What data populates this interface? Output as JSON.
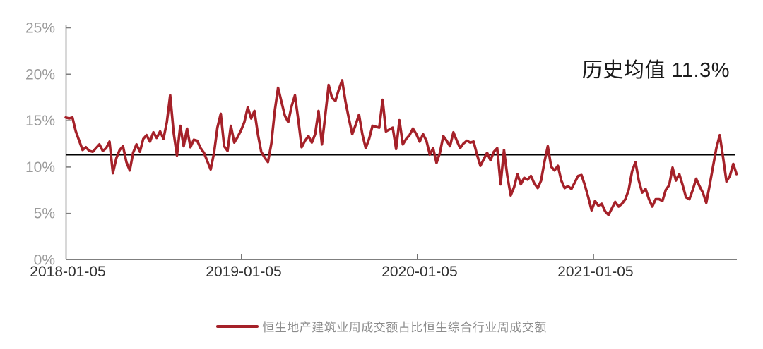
{
  "chart_data": {
    "type": "line",
    "title": "",
    "xlabel": "",
    "ylabel": "",
    "ylim": [
      0,
      25
    ],
    "grid": false,
    "legend_position": "bottom-center",
    "x_ticks": [
      "2018-01-05",
      "2019-01-05",
      "2020-01-05",
      "2021-01-05"
    ],
    "y_ticks": [
      0,
      5,
      10,
      15,
      20,
      25
    ],
    "y_tick_labels": [
      "0%",
      "5%",
      "10%",
      "15%",
      "20%",
      "25%"
    ],
    "mean_line": {
      "value": 11.3,
      "color": "#000000",
      "label": "历史均值 11.3%"
    },
    "series": [
      {
        "name": "恒生地产建筑业周成交额占比恒生综合行业周成交额",
        "color": "#A52129",
        "unit": "%",
        "start_date": "2018-01-05",
        "frequency": "weekly",
        "values": [
          15.3,
          15.2,
          15.3,
          13.8,
          12.8,
          11.8,
          12.1,
          11.7,
          11.6,
          12.0,
          12.4,
          11.7,
          12.0,
          12.7,
          9.3,
          10.9,
          11.8,
          12.2,
          10.5,
          9.6,
          11.5,
          12.4,
          11.6,
          13.0,
          13.4,
          12.7,
          13.7,
          13.1,
          13.8,
          13.0,
          14.8,
          17.7,
          13.7,
          11.2,
          14.4,
          12.2,
          14.1,
          12.1,
          12.9,
          12.8,
          12.0,
          11.5,
          10.6,
          9.7,
          11.5,
          14.2,
          15.7,
          12.2,
          11.7,
          14.4,
          12.6,
          13.2,
          13.9,
          14.8,
          16.4,
          15.2,
          16.0,
          13.5,
          11.6,
          11.0,
          10.5,
          12.5,
          16.0,
          18.5,
          17.0,
          15.5,
          14.8,
          16.5,
          17.7,
          15.0,
          12.1,
          12.8,
          13.3,
          12.6,
          13.5,
          16.0,
          12.4,
          15.5,
          18.8,
          17.4,
          17.1,
          18.3,
          19.3,
          17.0,
          15.2,
          13.5,
          14.5,
          15.6,
          13.5,
          12.0,
          13.0,
          14.4,
          14.3,
          14.2,
          17.2,
          13.8,
          14.0,
          14.2,
          11.9,
          15.0,
          12.4,
          13.0,
          13.4,
          14.1,
          13.5,
          12.7,
          13.5,
          12.8,
          11.3,
          12.0,
          10.4,
          11.5,
          13.3,
          12.8,
          12.2,
          13.7,
          12.8,
          12.0,
          12.5,
          12.8,
          12.6,
          12.7,
          11.3,
          10.1,
          10.8,
          11.5,
          10.7,
          11.6,
          12.0,
          8.1,
          11.8,
          9.0,
          6.9,
          7.8,
          9.2,
          8.1,
          8.8,
          8.6,
          9.0,
          8.2,
          7.7,
          8.5,
          10.5,
          12.2,
          10.0,
          9.6,
          10.1,
          8.5,
          7.7,
          7.9,
          7.6,
          8.3,
          9.0,
          9.1,
          8.0,
          6.7,
          5.3,
          6.3,
          5.8,
          6.0,
          5.2,
          4.8,
          5.5,
          6.2,
          5.7,
          6.0,
          6.5,
          7.5,
          9.5,
          10.5,
          8.5,
          7.2,
          7.6,
          6.5,
          5.7,
          6.5,
          6.5,
          6.3,
          7.5,
          8.0,
          9.9,
          8.5,
          9.2,
          8.0,
          6.7,
          6.5,
          7.5,
          8.7,
          7.9,
          7.2,
          6.1,
          8.0,
          10.0,
          12.0,
          13.4,
          11.0,
          8.4,
          9.0,
          10.3,
          9.2
        ]
      }
    ]
  },
  "annotation": {
    "text": "历史均值 11.3%"
  },
  "legend": {
    "label": "恒生地产建筑业周成交额占比恒生综合行业周成交额",
    "swatch_color": "#A52129"
  },
  "colors": {
    "series": "#A52129",
    "mean_line": "#000000",
    "axis": "#7f7f7f",
    "y_tick_text": "#9b9b9b",
    "x_tick_text": "#333333",
    "legend_text": "#8c8c8c",
    "annotation_text": "#1a1a1a"
  }
}
